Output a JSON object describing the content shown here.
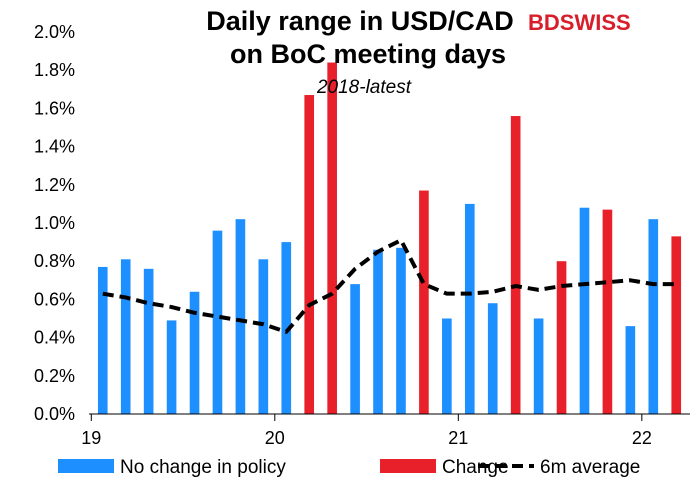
{
  "chart_data": {
    "type": "bar",
    "title_line1": "Daily range in USD/CAD",
    "title_line2": "on BoC meeting days",
    "subtitle": "2018-latest",
    "logo": "BDSWISS",
    "ylim": [
      0,
      2.0
    ],
    "y_ticks": [
      "0.0%",
      "0.2%",
      "0.4%",
      "0.6%",
      "0.8%",
      "1.0%",
      "1.2%",
      "1.4%",
      "1.6%",
      "1.8%",
      "2.0%"
    ],
    "x_ticks": [
      {
        "label": "19",
        "index": 0
      },
      {
        "label": "20",
        "index": 8
      },
      {
        "label": "21",
        "index": 16
      },
      {
        "label": "22",
        "index": 24
      }
    ],
    "colors": {
      "no_change": "#1e8fff",
      "change": "#e8202a",
      "average": "#000000"
    },
    "series": [
      {
        "name": "No change in policy",
        "key": "no_change"
      },
      {
        "name": "Change",
        "key": "change"
      },
      {
        "name": "6m average",
        "key": "average"
      }
    ],
    "bars": [
      {
        "value": 0.77,
        "series": "no_change"
      },
      {
        "value": 0.81,
        "series": "no_change"
      },
      {
        "value": 0.76,
        "series": "no_change"
      },
      {
        "value": 0.49,
        "series": "no_change"
      },
      {
        "value": 0.64,
        "series": "no_change"
      },
      {
        "value": 0.96,
        "series": "no_change"
      },
      {
        "value": 1.02,
        "series": "no_change"
      },
      {
        "value": 0.81,
        "series": "no_change"
      },
      {
        "value": 0.9,
        "series": "no_change"
      },
      {
        "value": 1.67,
        "series": "change"
      },
      {
        "value": 1.84,
        "series": "change"
      },
      {
        "value": 0.68,
        "series": "no_change"
      },
      {
        "value": 0.86,
        "series": "no_change"
      },
      {
        "value": 0.87,
        "series": "no_change"
      },
      {
        "value": 1.17,
        "series": "change"
      },
      {
        "value": 0.5,
        "series": "no_change"
      },
      {
        "value": 1.1,
        "series": "no_change"
      },
      {
        "value": 0.58,
        "series": "no_change"
      },
      {
        "value": 1.56,
        "series": "change"
      },
      {
        "value": 0.5,
        "series": "no_change"
      },
      {
        "value": 0.8,
        "series": "change"
      },
      {
        "value": 1.08,
        "series": "no_change"
      },
      {
        "value": 1.07,
        "series": "change"
      },
      {
        "value": 0.46,
        "series": "no_change"
      },
      {
        "value": 1.02,
        "series": "no_change"
      },
      {
        "value": 0.93,
        "series": "change"
      }
    ],
    "average": [
      0.63,
      0.61,
      0.58,
      0.56,
      0.53,
      0.51,
      0.49,
      0.47,
      0.43,
      0.57,
      0.63,
      0.76,
      0.85,
      0.91,
      0.68,
      0.63,
      0.63,
      0.64,
      0.67,
      0.65,
      0.67,
      0.68,
      0.69,
      0.7,
      0.68,
      0.68
    ]
  }
}
